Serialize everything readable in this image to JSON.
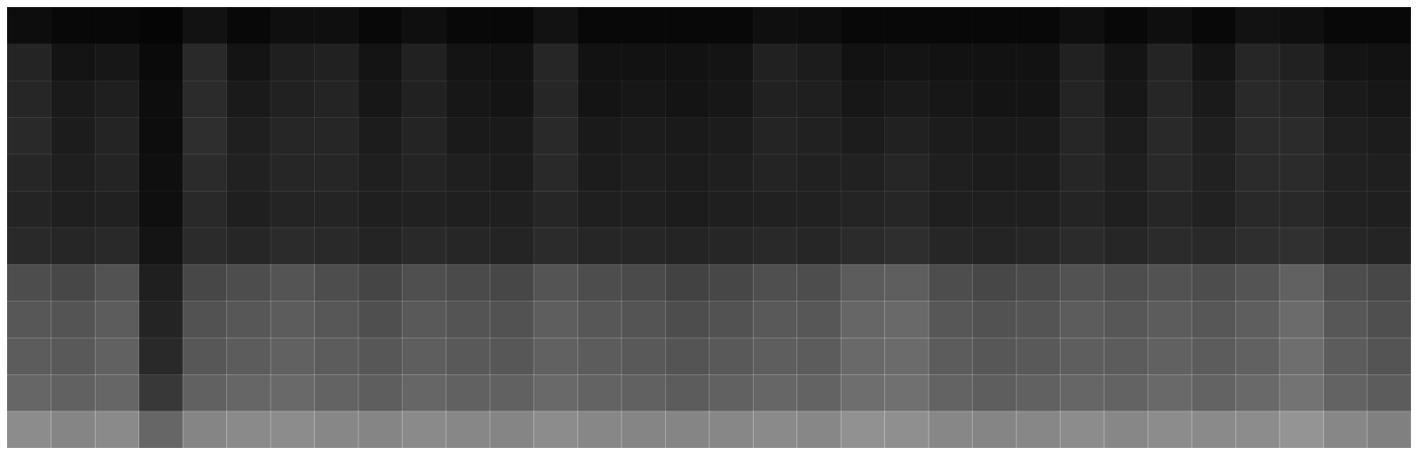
{
  "chart_data": {
    "type": "heatmap",
    "tick_labels": false,
    "color": "#ffffff",
    "cells": [
      [
        5,
        3,
        3,
        2,
        7,
        3,
        6,
        6,
        3,
        6,
        3,
        3,
        7,
        3,
        3,
        3,
        3,
        6,
        5,
        3,
        3,
        3,
        3,
        3,
        6,
        3,
        6,
        3,
        7,
        6,
        3,
        3
      ],
      [
        14,
        8,
        9,
        4,
        16,
        8,
        12,
        13,
        8,
        13,
        8,
        7,
        15,
        7,
        7,
        7,
        8,
        13,
        11,
        7,
        8,
        7,
        7,
        7,
        13,
        8,
        14,
        8,
        15,
        13,
        8,
        7
      ],
      [
        15,
        10,
        12,
        5,
        17,
        10,
        13,
        14,
        9,
        13,
        9,
        8,
        15,
        8,
        9,
        8,
        9,
        13,
        12,
        9,
        10,
        9,
        8,
        8,
        14,
        9,
        15,
        10,
        16,
        15,
        10,
        9
      ],
      [
        16,
        11,
        14,
        5,
        18,
        12,
        15,
        15,
        11,
        14,
        10,
        10,
        16,
        10,
        11,
        10,
        11,
        14,
        13,
        11,
        13,
        11,
        10,
        10,
        15,
        11,
        16,
        12,
        17,
        17,
        12,
        11
      ],
      [
        15,
        12,
        14,
        6,
        17,
        13,
        15,
        15,
        12,
        14,
        12,
        11,
        16,
        11,
        12,
        11,
        12,
        14,
        13,
        13,
        15,
        12,
        11,
        11,
        15,
        12,
        16,
        13,
        17,
        17,
        13,
        12
      ],
      [
        14,
        12,
        13,
        6,
        16,
        12,
        14,
        14,
        12,
        13,
        12,
        12,
        15,
        12,
        12,
        11,
        12,
        13,
        13,
        14,
        15,
        12,
        12,
        12,
        14,
        12,
        15,
        13,
        16,
        16,
        13,
        12
      ],
      [
        16,
        15,
        16,
        8,
        17,
        15,
        17,
        16,
        14,
        16,
        15,
        14,
        17,
        15,
        15,
        14,
        15,
        16,
        15,
        17,
        18,
        15,
        14,
        15,
        17,
        15,
        17,
        16,
        18,
        19,
        15,
        14
      ],
      [
        30,
        28,
        32,
        12,
        28,
        30,
        33,
        30,
        27,
        31,
        29,
        28,
        33,
        30,
        29,
        26,
        28,
        31,
        30,
        36,
        37,
        30,
        28,
        29,
        32,
        30,
        32,
        30,
        33,
        38,
        30,
        28
      ],
      [
        34,
        33,
        36,
        14,
        32,
        34,
        36,
        34,
        31,
        35,
        33,
        32,
        37,
        34,
        33,
        30,
        32,
        35,
        34,
        40,
        41,
        34,
        32,
        33,
        36,
        34,
        36,
        34,
        37,
        42,
        34,
        31
      ],
      [
        36,
        35,
        38,
        16,
        34,
        36,
        38,
        36,
        34,
        37,
        35,
        34,
        38,
        36,
        35,
        33,
        35,
        37,
        36,
        41,
        42,
        36,
        34,
        35,
        37,
        36,
        38,
        36,
        38,
        43,
        36,
        33
      ],
      [
        40,
        38,
        40,
        22,
        38,
        40,
        41,
        39,
        37,
        40,
        38,
        38,
        41,
        39,
        38,
        36,
        38,
        40,
        39,
        43,
        44,
        39,
        37,
        38,
        40,
        39,
        41,
        39,
        41,
        45,
        39,
        36
      ],
      [
        55,
        52,
        54,
        40,
        52,
        54,
        55,
        53,
        52,
        54,
        53,
        52,
        55,
        53,
        52,
        52,
        53,
        54,
        53,
        57,
        56,
        53,
        52,
        53,
        55,
        53,
        55,
        54,
        55,
        58,
        53,
        50
      ]
    ]
  }
}
